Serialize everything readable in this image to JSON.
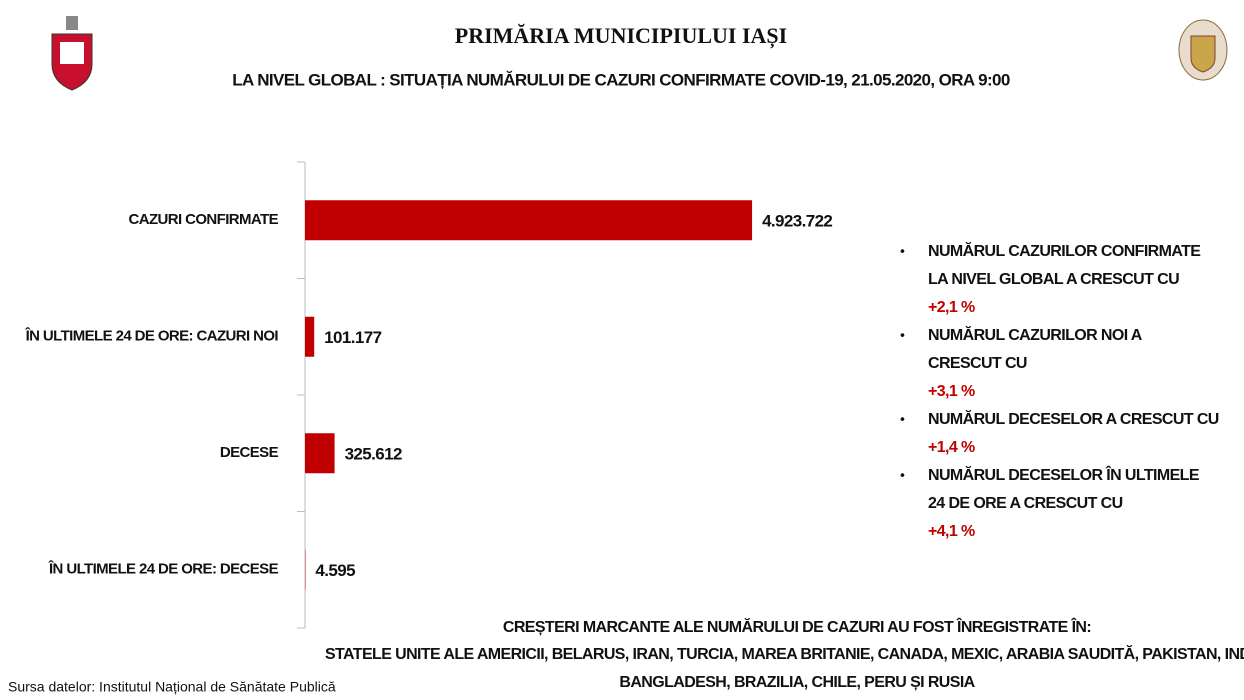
{
  "header": {
    "title": "PRIMĂRIA MUNICIPIULUI IAȘI",
    "subtitle": "LA NIVEL GLOBAL : SITUAȚIA NUMĂRULUI DE CAZURI CONFIRMATE COVID-19, 21.05.2020, ORA 9:00"
  },
  "chart_data": {
    "type": "hbar",
    "categories": [
      "CAZURI CONFIRMATE",
      "ÎN ULTIMELE 24 DE ORE: CAZURI NOI",
      "DECESE",
      "ÎN ULTIMELE 24 DE ORE: DECESE"
    ],
    "values": [
      4923722,
      101177,
      325612,
      4595
    ],
    "value_labels": [
      "4.923.722",
      "101.177",
      "325.612",
      "4.595"
    ],
    "color": "#c00000",
    "xlim": [
      0,
      5000000
    ]
  },
  "notes": [
    {
      "lines": [
        "NUMĂRUL CAZURILOR CONFIRMATE",
        "LA NIVEL GLOBAL A CRESCUT CU"
      ],
      "change": "+2,1 %"
    },
    {
      "lines": [
        "NUMĂRUL CAZURILOR NOI A",
        "CRESCUT CU"
      ],
      "change": "+3,1 %"
    },
    {
      "lines": [
        "NUMĂRUL DECESELOR A CRESCUT CU"
      ],
      "change": "+1,4 %"
    },
    {
      "lines": [
        "NUMĂRUL DECESELOR ÎN ULTIMELE",
        "24 DE ORE A CRESCUT CU"
      ],
      "change": "+4,1 %"
    }
  ],
  "footer": {
    "heading": "CREȘTERI MARCANTE ALE NUMĂRULUI DE CAZURI AU FOST ÎNREGISTRATE ÎN:",
    "lines": [
      "STATELE UNITE ALE AMERICII, BELARUS, IRAN, TURCIA, MAREA BRITANIE, CANADA, MEXIC, ARABIA SAUDITĂ, PAKISTAN, INDIA,",
      "BANGLADESH, BRAZILIA, CHILE, PERU ȘI RUSIA"
    ],
    "source": "Sursa datelor: Institutul Național de Sănătate Publică"
  }
}
